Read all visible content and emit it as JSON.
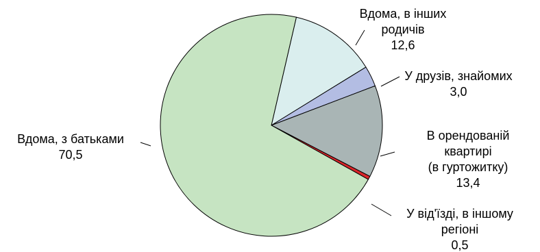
{
  "chart_data": {
    "type": "pie",
    "slices": [
      {
        "label_lines": [
          "Вдома, з батьками"
        ],
        "value_text": "70,5",
        "value": 70.5,
        "color": "#c6e4c2"
      },
      {
        "label_lines": [
          "Вдома, в інших",
          "родичів"
        ],
        "value_text": "12,6",
        "value": 12.6,
        "color": "#daeeee"
      },
      {
        "label_lines": [
          "У друзів, знайомих"
        ],
        "value_text": "3,0",
        "value": 3.0,
        "color": "#b3bde3"
      },
      {
        "label_lines": [
          "В орендованій",
          "квартирі",
          "(в гуртожитку)"
        ],
        "value_text": "13,4",
        "value": 13.4,
        "color": "#a9b5b5"
      },
      {
        "label_lines": [
          "У від'їзді, в іншому",
          "регіоні"
        ],
        "value_text": "0,5",
        "value": 0.5,
        "color": "#d8262b"
      }
    ]
  }
}
